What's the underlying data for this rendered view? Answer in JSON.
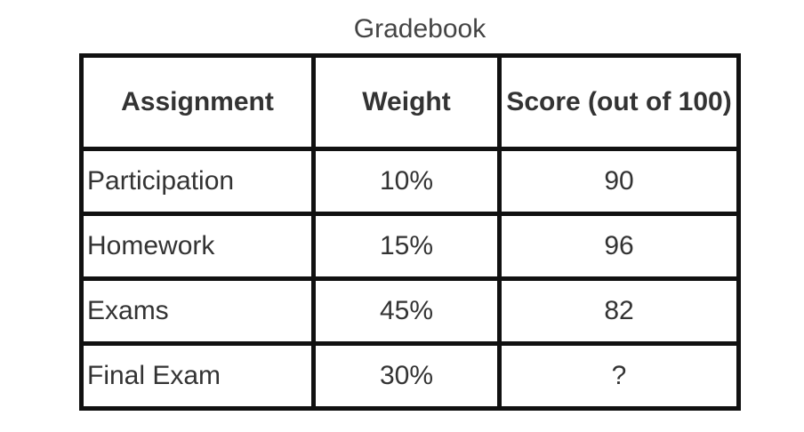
{
  "title": "Gradebook",
  "table": {
    "headers": [
      "Assignment",
      "Weight",
      "Score (out of 100)"
    ],
    "rows": [
      {
        "assignment": "Participation",
        "weight": "10%",
        "score": "90"
      },
      {
        "assignment": "Homework",
        "weight": "15%",
        "score": "96"
      },
      {
        "assignment": "Exams",
        "weight": "45%",
        "score": "82"
      },
      {
        "assignment": "Final Exam",
        "weight": "30%",
        "score": "?"
      }
    ]
  }
}
